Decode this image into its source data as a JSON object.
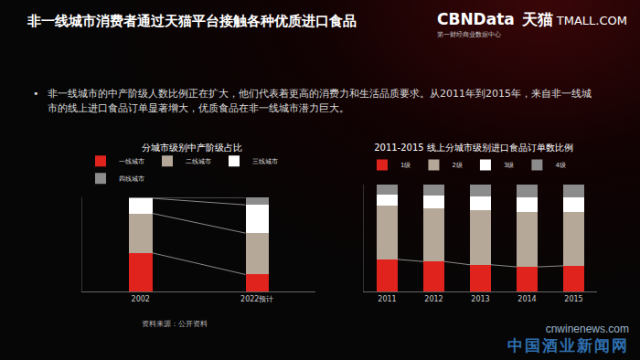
{
  "header": {
    "title": "非一线城市消费者通过天猫平台接触各种优质进口食品",
    "logo": "CBNData",
    "logo_sub": "第一财经商业数据中心",
    "partner": "天猫",
    "partner_en": "TMALL.COM"
  },
  "bullet": "非一线城市的中产阶级人数比例正在扩大，他们代表着更高的消费力和生活品质要求。从2011年到2015年，来自非一线城市的线上进口食品订单显著增大，优质食品在非一线城市潜力巨大。",
  "source": "资料来源：公开资料",
  "watermark": [
    "cnwinenews.com",
    "中国酒业新闻网"
  ],
  "chart_data": [
    {
      "type": "bar",
      "stacked": true,
      "title": "分城市级别中产阶级占比",
      "categories": [
        "2002",
        "2022预计"
      ],
      "series": [
        {
          "name": "一线城市",
          "color": "#e0231c",
          "values": [
            41,
            18
          ]
        },
        {
          "name": "二线城市",
          "color": "#b5a898",
          "values": [
            42,
            44
          ]
        },
        {
          "name": "三线城市",
          "color": "#ffffff",
          "values": [
            16,
            30
          ]
        },
        {
          "name": "四线城市",
          "color": "#8c8c8c",
          "values": [
            1,
            8
          ]
        }
      ],
      "ylim": [
        0,
        100
      ],
      "yticks": [],
      "tick_labels": "x",
      "legend": "top",
      "grid": false
    },
    {
      "type": "bar",
      "stacked": true,
      "title": "2011-2015 线上分城市级别进口食品订单数比例",
      "categories": [
        "2011",
        "2012",
        "2013",
        "2014",
        "2015"
      ],
      "series": [
        {
          "name": "1级",
          "color": "#e0231c",
          "values": [
            30,
            28,
            25,
            23,
            24
          ]
        },
        {
          "name": "2级",
          "color": "#b5a898",
          "values": [
            50,
            50,
            51,
            51,
            50
          ]
        },
        {
          "name": "3级",
          "color": "#ffffff",
          "values": [
            11,
            12,
            13,
            14,
            14
          ]
        },
        {
          "name": "4级",
          "color": "#8c8c8c",
          "values": [
            9,
            10,
            11,
            12,
            12
          ]
        }
      ],
      "ylim": [
        0,
        100
      ],
      "yticks": [],
      "tick_labels": "x",
      "legend": "top",
      "grid": false
    }
  ]
}
